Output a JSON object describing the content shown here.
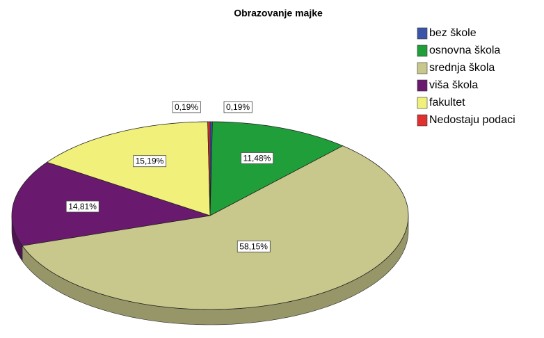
{
  "chart_data": {
    "type": "pie",
    "title": "Obrazovanje majke",
    "categories": [
      "bez škole",
      "osnovna škola",
      "srednja škola",
      "viša škola",
      "fakultet",
      "Nedostaju podaci"
    ],
    "values": [
      0.19,
      11.48,
      58.15,
      14.81,
      15.19,
      0.19
    ],
    "value_labels": [
      "0,19%",
      "11,48%",
      "58,15%",
      "14,81%",
      "15,19%",
      "0,19%"
    ],
    "colors": [
      "#3a55a8",
      "#1f9e3a",
      "#c8c88c",
      "#6a1a6e",
      "#f0f07a",
      "#e03030"
    ],
    "legend": "right"
  }
}
